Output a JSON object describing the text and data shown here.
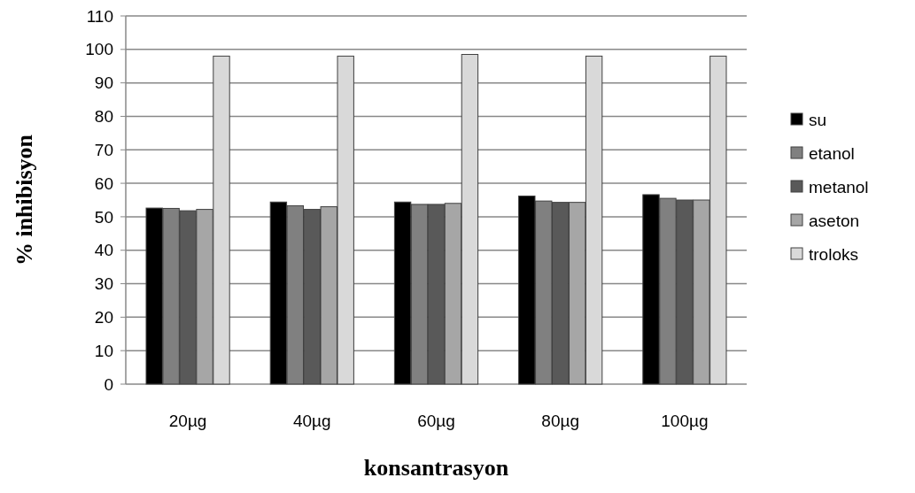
{
  "chart_data": {
    "type": "bar",
    "xlabel": "konsantrasyon",
    "ylabel": "% inhibisyon",
    "categories": [
      "20µg",
      "40µg",
      "60µg",
      "80µg",
      "100µg"
    ],
    "series": [
      {
        "name": "su",
        "color": "#000000",
        "values": [
          52.6,
          54.4,
          54.4,
          56.2,
          56.6
        ]
      },
      {
        "name": "etanol",
        "color": "#808080",
        "values": [
          52.5,
          53.3,
          53.7,
          54.7,
          55.5
        ]
      },
      {
        "name": "metanol",
        "color": "#595959",
        "values": [
          51.8,
          52.2,
          53.7,
          54.3,
          55.0
        ]
      },
      {
        "name": "aseton",
        "color": "#a6a6a6",
        "values": [
          52.2,
          53.0,
          54.0,
          54.3,
          55.0
        ]
      },
      {
        "name": "troloks",
        "color": "#d9d9d9",
        "values": [
          98,
          98,
          98.5,
          98,
          98
        ]
      }
    ],
    "ylim": [
      0,
      110
    ],
    "yticks": [
      0,
      10,
      20,
      30,
      40,
      50,
      60,
      70,
      80,
      90,
      100,
      110
    ],
    "grid": "y",
    "legend": "right"
  }
}
